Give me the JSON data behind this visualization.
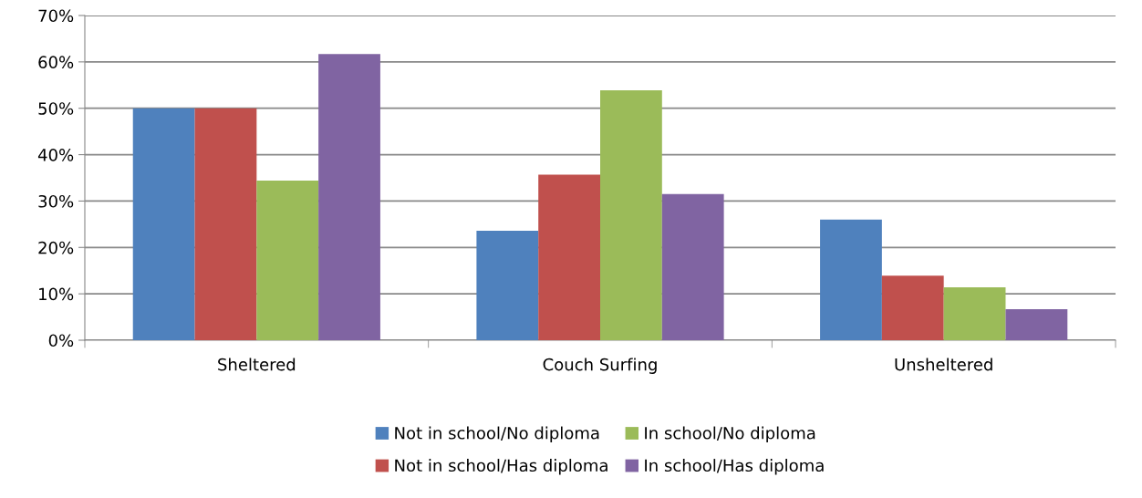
{
  "chart_data": {
    "type": "bar",
    "categories": [
      "Sheltered",
      "Couch Surfing",
      "Unsheltered"
    ],
    "series": [
      {
        "name": "Not in school/No diploma",
        "color": "#4f81bd",
        "values": [
          50.0,
          23.6,
          26.0
        ]
      },
      {
        "name": "Not in school/Has diploma",
        "color": "#c0504d",
        "values": [
          50.0,
          35.7,
          13.9
        ]
      },
      {
        "name": "In school/No diploma",
        "color": "#9bbb59",
        "values": [
          34.4,
          53.9,
          11.4
        ]
      },
      {
        "name": "In school/Has diploma",
        "color": "#8064a2",
        "values": [
          61.7,
          31.5,
          6.7
        ]
      }
    ],
    "ylim": [
      0,
      70
    ],
    "yticks": [
      {
        "value": 0,
        "label": "0%"
      },
      {
        "value": 10,
        "label": "10%"
      },
      {
        "value": 20,
        "label": "20%"
      },
      {
        "value": 30,
        "label": "30%"
      },
      {
        "value": 40,
        "label": "40%"
      },
      {
        "value": 50,
        "label": "50%"
      },
      {
        "value": 60,
        "label": "60%"
      },
      {
        "value": 70,
        "label": "70%"
      }
    ],
    "grid": "y",
    "legend": "bottom"
  }
}
